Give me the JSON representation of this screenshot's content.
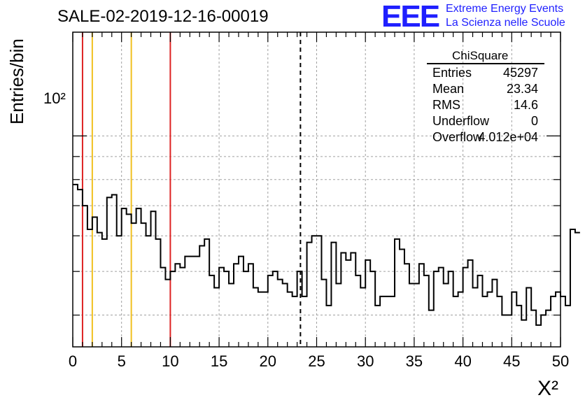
{
  "header": {
    "run_title": "SALE-02-2019-12-16-00019",
    "logo_mark": "EEE",
    "logo_line1": "Extreme Energy Events",
    "logo_line2": "La Scienza nelle Scuole"
  },
  "stats": {
    "name": "ChiSquare",
    "rows": [
      {
        "label": "Entries",
        "value": "45297"
      },
      {
        "label": "Mean",
        "value": "23.34"
      },
      {
        "label": "RMS",
        "value": "14.6"
      },
      {
        "label": "Underflow",
        "value": "0"
      },
      {
        "label": "Overflow",
        "value": "4.012e+04"
      }
    ]
  },
  "chart_data": {
    "type": "histogram",
    "title": "SALE-02-2019-12-16-00019",
    "xlabel": "X²",
    "ylabel": "Entries/bin",
    "xlim": [
      0,
      50
    ],
    "ylim_log": [
      34,
      170
    ],
    "yscale": "log",
    "grid": true,
    "x_ticks": [
      0,
      5,
      10,
      15,
      20,
      25,
      30,
      35,
      40,
      45,
      50
    ],
    "y_tick_label": "10²",
    "bin_width": 0.5,
    "counts": [
      78,
      76,
      70,
      62,
      66,
      61,
      59,
      73,
      74,
      60,
      69,
      67,
      64,
      69,
      64,
      60,
      68,
      59,
      51,
      48,
      50,
      52,
      51,
      54,
      54,
      54,
      57,
      59,
      49,
      46,
      51,
      50,
      47,
      52,
      54,
      50,
      52,
      46,
      45,
      45,
      49,
      50,
      48,
      47,
      45,
      44,
      50,
      44,
      58,
      60,
      60,
      48,
      42,
      58,
      47,
      55,
      53,
      55,
      49,
      46,
      53,
      50,
      42,
      44,
      44,
      44,
      59,
      56,
      52,
      47,
      47,
      52,
      49,
      41,
      50,
      51,
      47,
      50,
      44,
      45,
      51,
      53,
      46,
      49,
      44,
      45,
      48,
      44,
      40,
      40,
      45,
      42,
      39,
      46,
      41,
      38,
      40,
      41,
      44,
      45,
      44,
      42,
      62,
      61
    ],
    "reference_lines": [
      {
        "x": 1,
        "color": "#dd2222"
      },
      {
        "x": 2,
        "color": "#f0c020"
      },
      {
        "x": 6,
        "color": "#f0c020"
      },
      {
        "x": 10,
        "color": "#dd2222"
      }
    ],
    "mean_line": {
      "x": 23.34,
      "style": "dashed",
      "color": "#000000"
    }
  }
}
